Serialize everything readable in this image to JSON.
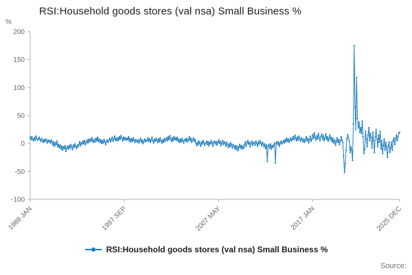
{
  "header": {
    "title": "RSI:Household goods stores (val nsa) Small Business %"
  },
  "y_axis": {
    "unit_label": "%"
  },
  "legend": {
    "label": "RSI:Household goods stores (val nsa) Small Business %"
  },
  "footer": {
    "source_label": "Source:"
  },
  "chart_data": {
    "type": "line",
    "title": "RSI:Household goods stores (val nsa) Small Business %",
    "xlabel": "",
    "ylabel": "%",
    "ylim": [
      -100,
      200
    ],
    "y_ticks": [
      200,
      150,
      100,
      50,
      0,
      -50,
      -100
    ],
    "frequency": "monthly",
    "x_start": "1988 JAN",
    "x_end": "2025 DEC",
    "x_tick_labels": [
      "1988 JAN",
      "1997 SEP",
      "2007 MAY",
      "2017 JAN",
      "2025 DEC"
    ],
    "x_tick_indices": [
      0,
      116,
      232,
      348,
      455
    ],
    "series_name": "RSI:Household goods stores (val nsa) Small Business %",
    "color": "#1d7cbf",
    "legend_position": "bottom",
    "grid": false,
    "values": [
      11,
      7,
      12,
      8,
      5,
      10,
      6,
      13,
      9,
      6,
      8,
      11,
      7,
      4,
      9,
      5,
      2,
      7,
      3,
      8,
      5,
      1,
      6,
      3,
      5,
      1,
      6,
      2,
      -3,
      3,
      -5,
      1,
      -2,
      4,
      -6,
      -2,
      -7,
      -3,
      -10,
      -5,
      -12,
      -6,
      -9,
      -4,
      -14,
      -8,
      -5,
      -10,
      -4,
      -8,
      -2,
      -6,
      -11,
      -3,
      -7,
      -1,
      -5,
      -9,
      -3,
      -6,
      -2,
      3,
      -4,
      1,
      -1,
      4,
      0,
      5,
      -2,
      2,
      6,
      1,
      7,
      3,
      8,
      4,
      10,
      5,
      2,
      7,
      3,
      9,
      5,
      11,
      4,
      8,
      2,
      6,
      0,
      5,
      1,
      7,
      3,
      -2,
      4,
      6,
      2,
      6,
      9,
      3,
      7,
      11,
      4,
      8,
      13,
      6,
      9,
      5,
      10,
      6,
      12,
      8,
      14,
      9,
      5,
      11,
      7,
      10,
      6,
      9,
      7,
      12,
      5,
      9,
      3,
      8,
      4,
      10,
      6,
      2,
      7,
      4,
      3,
      7,
      1,
      5,
      9,
      2,
      6,
      0,
      4,
      8,
      3,
      6,
      5,
      10,
      4,
      8,
      2,
      6,
      11,
      5,
      1,
      7,
      4,
      9,
      6,
      2,
      8,
      3,
      10,
      5,
      1,
      6,
      2,
      9,
      4,
      7,
      10,
      5,
      12,
      7,
      14,
      8,
      4,
      10,
      5,
      12,
      7,
      10,
      6,
      11,
      4,
      8,
      2,
      7,
      3,
      9,
      5,
      1,
      6,
      8,
      4,
      9,
      3,
      7,
      12,
      5,
      9,
      2,
      6,
      10,
      4,
      7,
      1,
      -4,
      2,
      -2,
      4,
      0,
      -5,
      3,
      -1,
      5,
      1,
      -3,
      0,
      4,
      -2,
      3,
      -4,
      2,
      -1,
      5,
      1,
      -5,
      2,
      4,
      -1,
      3,
      -3,
      2,
      6,
      0,
      4,
      -4,
      1,
      5,
      -2,
      3,
      0,
      -5,
      2,
      -2,
      -7,
      -1,
      -6,
      1,
      -3,
      -8,
      -2,
      -5,
      -9,
      -4,
      -11,
      -5,
      -13,
      -7,
      -2,
      -8,
      -4,
      -10,
      -5,
      -8,
      -2,
      3,
      -5,
      1,
      5,
      -1,
      2,
      -6,
      0,
      4,
      -3,
      1,
      2,
      -3,
      4,
      0,
      -5,
      3,
      -1,
      5,
      1,
      -4,
      2,
      -1,
      -6,
      -1,
      -9,
      -3,
      -32,
      -5,
      -2,
      -8,
      -1,
      -10,
      -4,
      -7,
      -3,
      1,
      -35,
      0,
      3,
      -2,
      2,
      -5,
      1,
      4,
      -1,
      2,
      5,
      1,
      7,
      3,
      9,
      4,
      8,
      2,
      6,
      10,
      5,
      8,
      12,
      7,
      15,
      9,
      5,
      11,
      6,
      13,
      8,
      4,
      10,
      7,
      3,
      8,
      2,
      6,
      12,
      5,
      9,
      1,
      7,
      13,
      4,
      8,
      16,
      9,
      19,
      11,
      6,
      14,
      8,
      18,
      10,
      5,
      12,
      17,
      8,
      14,
      5,
      10,
      17,
      7,
      12,
      4,
      9,
      15,
      6,
      11,
      3,
      9,
      1,
      6,
      -3,
      4,
      10,
      2,
      7,
      -2,
      5,
      12,
      6,
      2,
      -22,
      -52,
      -36,
      -12,
      8,
      16,
      10,
      4,
      -16,
      -6,
      -12,
      -30,
      35,
      175,
      65,
      25,
      118,
      45,
      28,
      38,
      20,
      28,
      18,
      40,
      12,
      -18,
      -10,
      22,
      8,
      -6,
      15,
      28,
      5,
      18,
      10,
      -8,
      20,
      5,
      -16,
      12,
      25,
      8,
      -6,
      15,
      2,
      22,
      -10,
      5,
      -18,
      -4,
      8,
      -12,
      2,
      -8,
      -25,
      -5,
      3,
      -16,
      -8,
      2,
      -12,
      5,
      10,
      -2,
      8,
      15,
      5,
      12,
      18,
      20
    ]
  }
}
